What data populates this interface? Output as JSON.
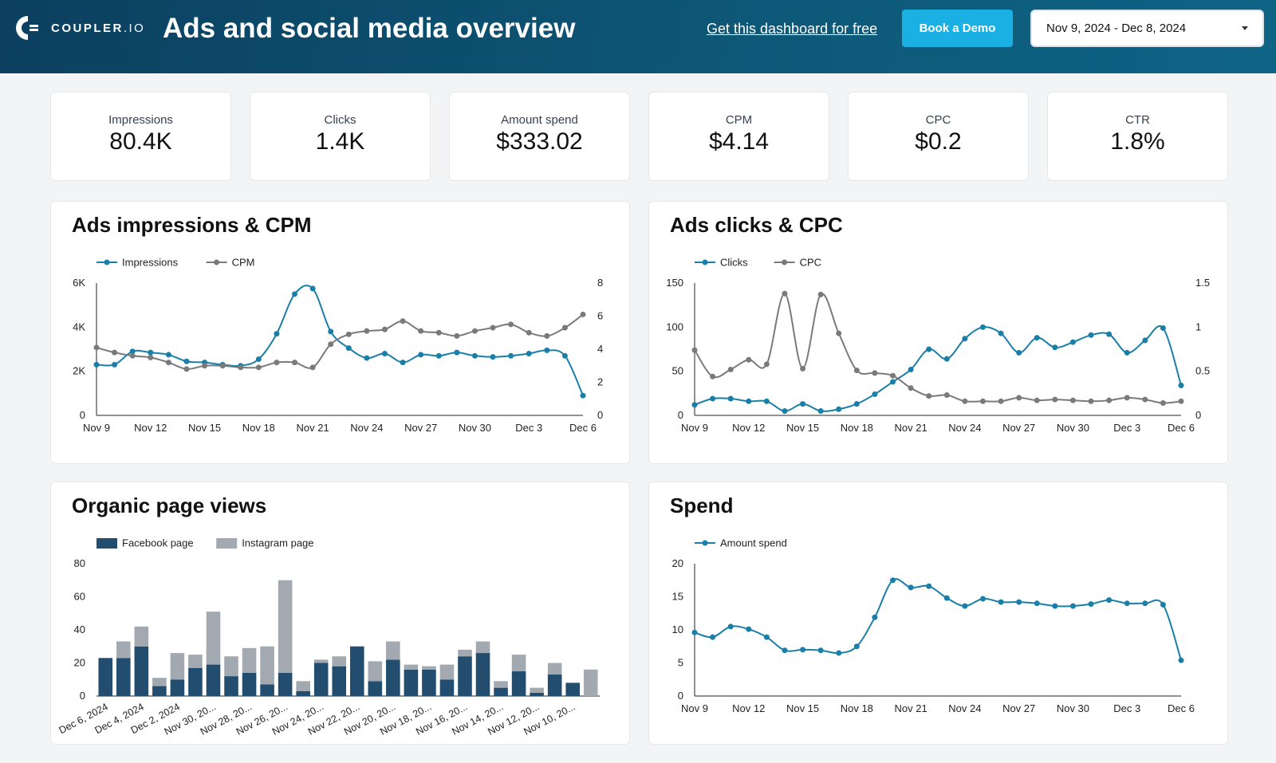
{
  "header": {
    "brand": "COUPLER",
    "brand_suffix": ".IO",
    "title": "Ads and social media overview",
    "free_link": "Get this dashboard for free",
    "demo_button": "Book a Demo",
    "date_range": "Nov 9, 2024 - Dec 8, 2024"
  },
  "kpis": [
    {
      "label": "Impressions",
      "value": "80.4K"
    },
    {
      "label": "Clicks",
      "value": "1.4K"
    },
    {
      "label": "Amount spend",
      "value": "$333.02"
    },
    {
      "label": "CPM",
      "value": "$4.14"
    },
    {
      "label": "CPC",
      "value": "$0.2"
    },
    {
      "label": "CTR",
      "value": "1.8%"
    }
  ],
  "colors": {
    "blue": "#1a7fa8",
    "gray": "#7a7a7a",
    "navy": "#224d6f",
    "lightgray": "#a3a9b1"
  },
  "chart_data": [
    {
      "type": "line",
      "title": "Ads impressions & CPM",
      "x_tick_labels": [
        "Nov 9",
        "Nov 12",
        "Nov 15",
        "Nov 18",
        "Nov 21",
        "Nov 24",
        "Nov 27",
        "Nov 30",
        "Dec 3",
        "Dec 6"
      ],
      "x_tick_every": 3,
      "y_left": {
        "ticks": [
          "0",
          "2K",
          "4K",
          "6K"
        ],
        "lim": [
          0,
          6000
        ]
      },
      "y_right": {
        "ticks": [
          "0",
          "2",
          "4",
          "6",
          "8"
        ],
        "lim": [
          0,
          8
        ]
      },
      "series": [
        {
          "name": "Impressions",
          "axis": "left",
          "color": "#1a7fa8",
          "values": [
            2300,
            2300,
            2900,
            2850,
            2750,
            2450,
            2400,
            2300,
            2250,
            2550,
            3700,
            5500,
            5750,
            3800,
            3050,
            2600,
            2800,
            2400,
            2750,
            2700,
            2850,
            2700,
            2650,
            2700,
            2800,
            2950,
            2700,
            900
          ]
        },
        {
          "name": "CPM",
          "axis": "right",
          "color": "#7a7a7a",
          "values": [
            4.1,
            3.8,
            3.6,
            3.5,
            3.2,
            2.8,
            3.0,
            3.0,
            2.9,
            2.9,
            3.2,
            3.2,
            2.9,
            4.3,
            4.9,
            5.1,
            5.2,
            5.7,
            5.1,
            5.0,
            4.8,
            5.1,
            5.3,
            5.5,
            5.0,
            4.8,
            5.3,
            6.1
          ]
        }
      ]
    },
    {
      "type": "line",
      "title": "Ads clicks & CPC",
      "x_tick_labels": [
        "Nov 9",
        "Nov 12",
        "Nov 15",
        "Nov 18",
        "Nov 21",
        "Nov 24",
        "Nov 27",
        "Nov 30",
        "Dec 3",
        "Dec 6"
      ],
      "x_tick_every": 3,
      "y_left": {
        "ticks": [
          "0",
          "50",
          "100",
          "150"
        ],
        "lim": [
          0,
          150
        ]
      },
      "y_right": {
        "ticks": [
          "0",
          "0.5",
          "1",
          "1.5"
        ],
        "lim": [
          0,
          1.5
        ]
      },
      "series": [
        {
          "name": "Clicks",
          "axis": "left",
          "color": "#1a7fa8",
          "values": [
            12,
            19,
            19,
            16,
            16,
            5,
            13,
            5,
            7,
            13,
            24,
            38,
            52,
            75,
            64,
            87,
            100,
            93,
            71,
            88,
            77,
            83,
            91,
            92,
            71,
            85,
            99,
            34
          ]
        },
        {
          "name": "CPC",
          "axis": "right",
          "color": "#7a7a7a",
          "values": [
            0.74,
            0.44,
            0.52,
            0.63,
            0.58,
            1.38,
            0.53,
            1.37,
            0.93,
            0.51,
            0.48,
            0.45,
            0.31,
            0.22,
            0.23,
            0.16,
            0.16,
            0.16,
            0.2,
            0.17,
            0.18,
            0.17,
            0.16,
            0.17,
            0.2,
            0.18,
            0.14,
            0.16
          ]
        }
      ]
    },
    {
      "type": "bar",
      "stacked": true,
      "title": "Organic page views",
      "categories": [
        "Dec 6, 2024",
        "",
        "Dec 4, 2024",
        "",
        "Dec 2, 2024",
        "",
        "Nov 30, 20...",
        "",
        "Nov 28, 20...",
        "",
        "Nov 26, 20...",
        "",
        "Nov 24, 20...",
        "",
        "Nov 22, 20...",
        "",
        "Nov 20, 20...",
        "",
        "Nov 18, 20...",
        "",
        "Nov 16, 20...",
        "",
        "Nov 14, 20...",
        "",
        "Nov 12, 20...",
        "",
        "Nov 10, 20...",
        ""
      ],
      "y": {
        "ticks": [
          "0",
          "20",
          "40",
          "60",
          "80"
        ],
        "lim": [
          0,
          80
        ]
      },
      "series": [
        {
          "name": "Facebook page",
          "color": "#224d6f",
          "values": [
            23,
            23,
            30,
            6,
            10,
            17,
            19,
            12,
            14,
            7,
            14,
            3,
            20,
            18,
            30,
            9,
            22,
            16,
            16,
            10,
            24,
            26,
            5,
            15,
            2,
            13,
            8,
            0
          ]
        },
        {
          "name": "Instagram page",
          "color": "#a3a9b1",
          "values": [
            0,
            10,
            12,
            5,
            16,
            8,
            32,
            12,
            15,
            23,
            56,
            6,
            2,
            6,
            0,
            12,
            11,
            3,
            2,
            9,
            4,
            7,
            4,
            10,
            3,
            7,
            0,
            16
          ]
        }
      ]
    },
    {
      "type": "line",
      "title": "Spend",
      "x_tick_labels": [
        "Nov 9",
        "Nov 12",
        "Nov 15",
        "Nov 18",
        "Nov 21",
        "Nov 24",
        "Nov 27",
        "Nov 30",
        "Dec 3",
        "Dec 6"
      ],
      "x_tick_every": 3,
      "y_left": {
        "ticks": [
          "0",
          "5",
          "10",
          "15",
          "20"
        ],
        "lim": [
          0,
          20
        ]
      },
      "series": [
        {
          "name": "Amount spend",
          "axis": "left",
          "color": "#1a7fa8",
          "values": [
            9.6,
            8.9,
            10.5,
            10.1,
            8.9,
            6.9,
            7.0,
            6.9,
            6.5,
            7.5,
            11.9,
            17.5,
            16.4,
            16.6,
            14.8,
            13.6,
            14.7,
            14.2,
            14.2,
            14.0,
            13.6,
            13.6,
            13.9,
            14.5,
            14.0,
            14.0,
            13.8,
            5.4
          ]
        }
      ]
    }
  ]
}
